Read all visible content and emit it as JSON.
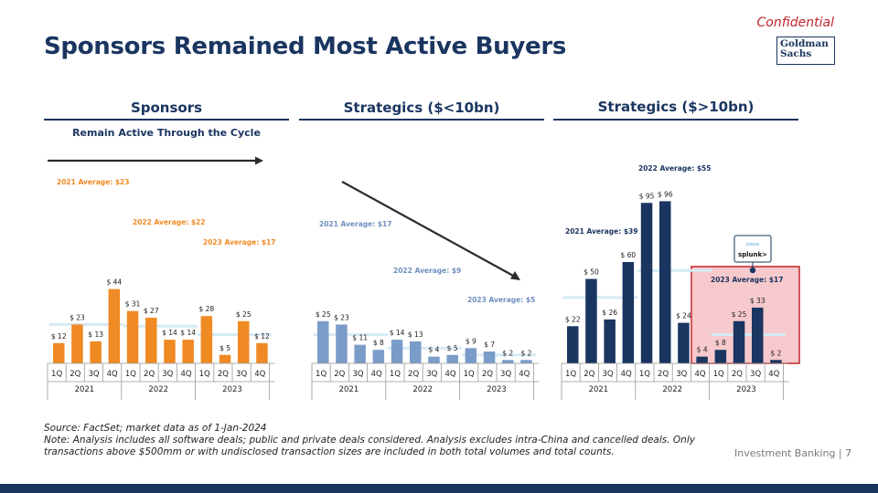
{
  "header": {
    "title": "Sponsors Remained Most Active Buyers",
    "confidential": "Confidential",
    "logo_text": "Goldman Sachs"
  },
  "columns": {
    "sponsors": "Sponsors",
    "strategics_small": "Strategics ($<10bn)",
    "strategics_large": "Strategics ($>10bn)",
    "sponsors_subtitle": "Remain Active Through the Cycle"
  },
  "colors": {
    "sponsors": "#f08a24",
    "strategics_small": "#7a9cc8",
    "strategics_large": "#1a3560",
    "highlight_fill": "#f6c9cc",
    "highlight_border": "#c0262d",
    "avg_line": "#d6eaf5",
    "sponsor_avg_label": "#f08a24",
    "small_avg_label": "#6f8fbf",
    "large_avg_label": "#1a3560"
  },
  "annotations": {
    "highlight_logo_text": "splunk>",
    "highlight_logo_subtext": "cisco"
  },
  "chart_data": [
    {
      "type": "bar",
      "title": "Sponsors",
      "categories": [
        "1Q",
        "2Q",
        "3Q",
        "4Q",
        "1Q",
        "2Q",
        "3Q",
        "4Q",
        "1Q",
        "2Q",
        "3Q",
        "4Q"
      ],
      "years": [
        "2021",
        "2022",
        "2023"
      ],
      "values": [
        12,
        23,
        13,
        44,
        31,
        27,
        14,
        14,
        28,
        5,
        25,
        12
      ],
      "value_labels": [
        "$ 12",
        "$ 23",
        "$ 13",
        "$ 44",
        "$ 31",
        "$ 27",
        "$ 14",
        "$ 14",
        "$ 28",
        "$ 5",
        "$ 25",
        "$ 12"
      ],
      "ylim": [
        0,
        100
      ],
      "averages": [
        {
          "label": "2021 Average: $23",
          "value": 23,
          "year": "2021"
        },
        {
          "label": "2022 Average: $22",
          "value": 22,
          "year": "2022"
        },
        {
          "label": "2023 Average: $17",
          "value": 17,
          "year": "2023"
        }
      ],
      "trend": "flat"
    },
    {
      "type": "bar",
      "title": "Strategics ($<10bn)",
      "categories": [
        "1Q",
        "2Q",
        "3Q",
        "4Q",
        "1Q",
        "2Q",
        "3Q",
        "4Q",
        "1Q",
        "2Q",
        "3Q",
        "4Q"
      ],
      "years": [
        "2021",
        "2022",
        "2023"
      ],
      "values": [
        25,
        23,
        11,
        8,
        14,
        13,
        4,
        5,
        9,
        7,
        2,
        2
      ],
      "value_labels": [
        "$ 25",
        "$ 23",
        "$ 11",
        "$ 8",
        "$ 14",
        "$ 13",
        "$ 4",
        "$ 5",
        "$ 9",
        "$ 7",
        "$ 2",
        "$ 2"
      ],
      "ylim": [
        0,
        100
      ],
      "averages": [
        {
          "label": "2021 Average: $17",
          "value": 17,
          "year": "2021"
        },
        {
          "label": "2022 Average: $9",
          "value": 9,
          "year": "2022"
        },
        {
          "label": "2023 Average: $5",
          "value": 5,
          "year": "2023"
        }
      ],
      "trend": "down"
    },
    {
      "type": "bar",
      "title": "Strategics ($>10bn)",
      "categories": [
        "1Q",
        "2Q",
        "3Q",
        "4Q",
        "1Q",
        "2Q",
        "3Q",
        "4Q",
        "1Q",
        "2Q",
        "3Q",
        "4Q"
      ],
      "years": [
        "2021",
        "2022",
        "2023"
      ],
      "values": [
        22,
        50,
        26,
        60,
        95,
        96,
        24,
        4,
        8,
        25,
        33,
        2
      ],
      "value_labels": [
        "$ 22",
        "$ 50",
        "$ 26",
        "$ 60",
        "$ 95",
        "$ 96",
        "$ 24",
        "$ 4",
        "$ 8",
        "$ 25",
        "$ 33",
        "$ 2"
      ],
      "ylim": [
        0,
        100
      ],
      "averages": [
        {
          "label": "2021 Average: $39",
          "value": 39,
          "year": "2021"
        },
        {
          "label": "2022 Average: $55",
          "value": 55,
          "year": "2022"
        },
        {
          "label": "2023 Average: $17",
          "value": 17,
          "year": "2023"
        }
      ],
      "highlight_year": "2023"
    }
  ],
  "footer": {
    "source": "Source: FactSet; market data as of 1-Jan-2024",
    "note": "Note: Analysis includes all software deals; public and private deals considered. Analysis excludes intra-China and cancelled deals. Only transactions above $500mm or with undisclosed transaction sizes are included in both total volumes and total counts.",
    "label": "Investment Banking | 7"
  }
}
